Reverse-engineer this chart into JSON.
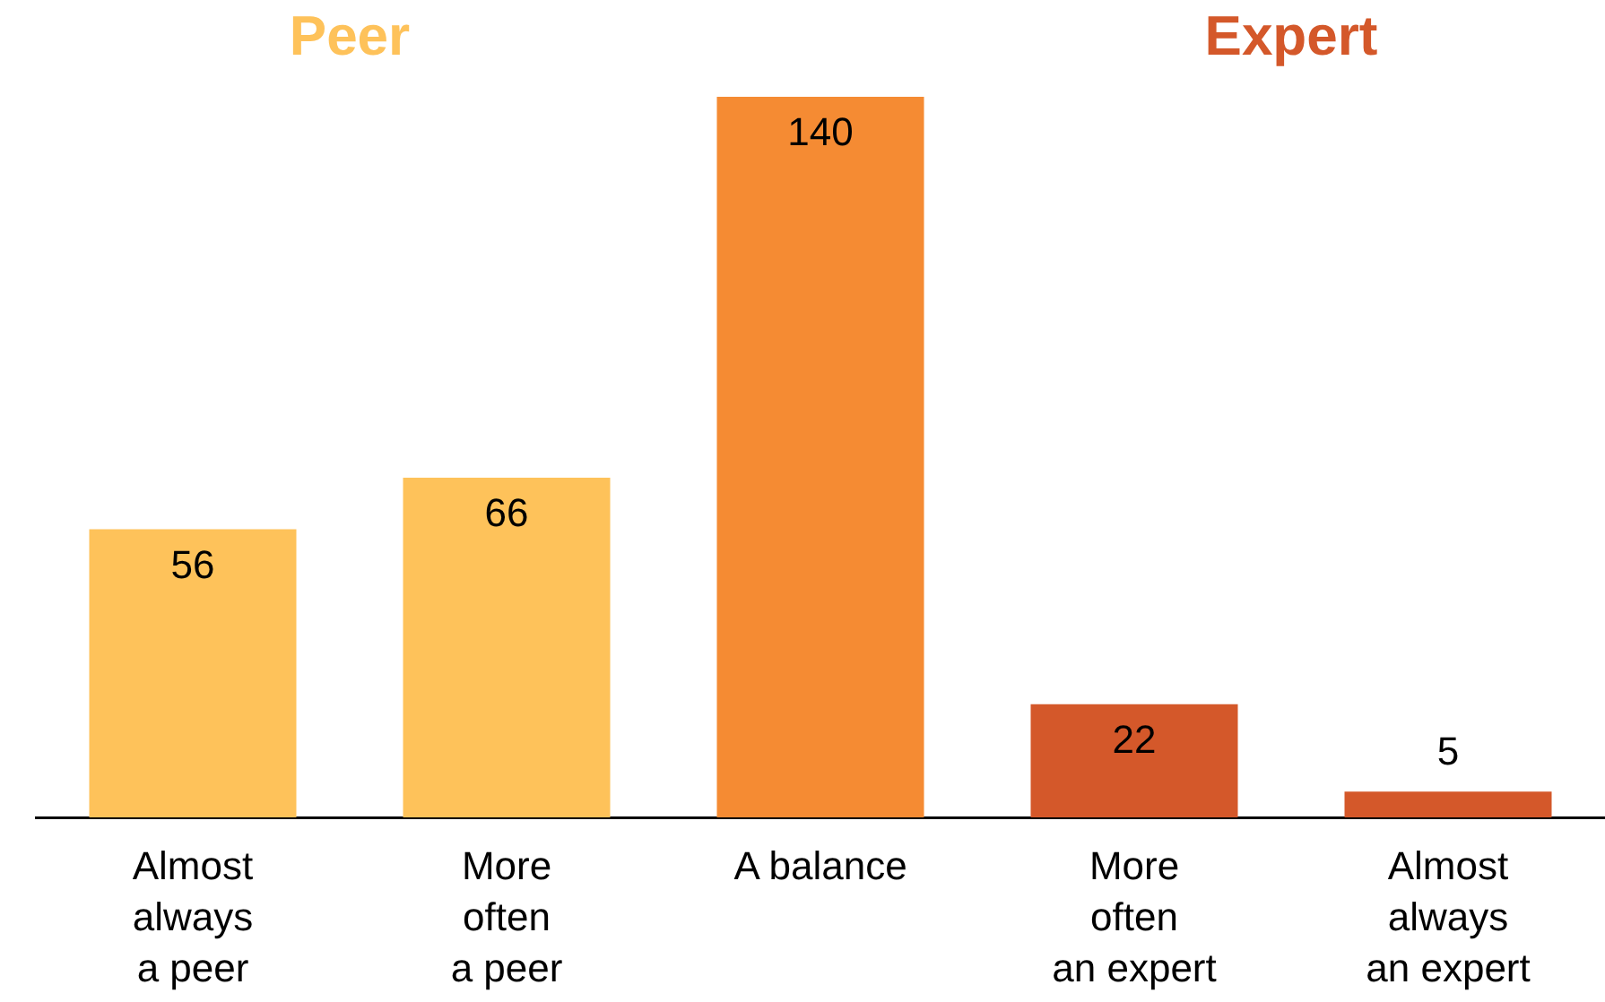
{
  "chart_data": {
    "type": "bar",
    "annotations": [
      "Peer",
      "Expert"
    ],
    "categories": [
      "Almost\nalways\na peer",
      "More\noften\na peer",
      "A balance",
      "More\noften\nan expert",
      "Almost\nalways\nan expert"
    ],
    "values": [
      56,
      66,
      140,
      22,
      5
    ],
    "colors": [
      "#fec25a",
      "#fec25a",
      "#f58b33",
      "#d4582a",
      "#d4582a"
    ],
    "ylim": [
      0,
      140
    ],
    "data_labels": true,
    "grid": false,
    "legend": false,
    "tick_labels": "x"
  }
}
